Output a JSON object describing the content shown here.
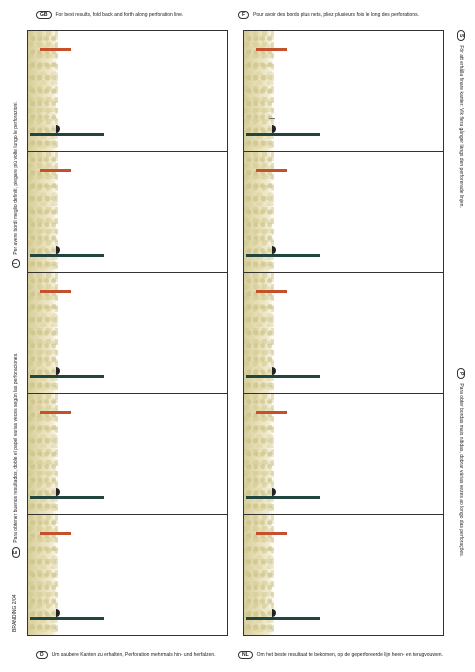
{
  "instructions": {
    "top_left": {
      "badge": "GB",
      "text": "For best results, fold back and forth along perforation line."
    },
    "top_right": {
      "badge": "F",
      "text": "Pour avoir des bords plus nets, pliez plusieurs fois le long des perforations."
    },
    "left_upper": {
      "badge": "I",
      "text": "Per avere bordi meglio definiti, piegare più volte lungo le perforazioni."
    },
    "left_lower": {
      "badge": "E",
      "text": "Para obtener buenos resultados, doble el papel varias veces según las perforaciones."
    },
    "right_upper": {
      "badge": "S",
      "text": "För att erhålla finare kanter: Vik flera gånger längs den perforerade linjen."
    },
    "right_lower": {
      "badge": "P",
      "text": "Para obter bordas mais nítidas, dobrar várias vezes ao longo das perforações."
    },
    "bottom_left": {
      "badge": "D",
      "text": "Um saubere Kanten zu erhalten, Perforation mehrmals hin- und herfalzen."
    },
    "bottom_right": {
      "badge": "NL",
      "text": "Om het beste resultaat te bekomen, op de geperforeerde lijn heen- en terugvouwen."
    }
  },
  "footer_code": "BRANDING 2/04",
  "colors": {
    "accent_red": "#c4512a",
    "accent_green": "#22463f"
  }
}
